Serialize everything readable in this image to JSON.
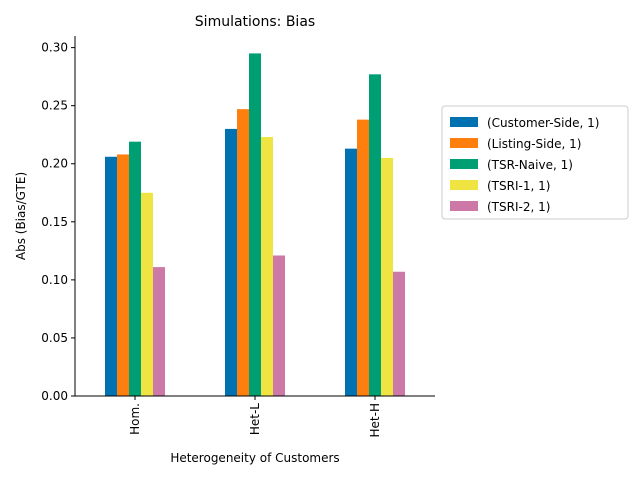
{
  "chart_data": {
    "type": "bar",
    "title": "Simulations: Bias",
    "xlabel": "Heterogeneity of Customers",
    "ylabel": "Abs (Bias/GTE)",
    "categories": [
      "Hom.",
      "Het-L",
      "Het-H"
    ],
    "ylim": [
      0,
      0.31
    ],
    "yticks": [
      0.0,
      0.05,
      0.1,
      0.15,
      0.2,
      0.25,
      0.3
    ],
    "ytick_labels": [
      "0.00",
      "0.05",
      "0.10",
      "0.15",
      "0.20",
      "0.25",
      "0.30"
    ],
    "grid": false,
    "legend_position": "right",
    "series": [
      {
        "name": "(Customer-Side, 1)",
        "color": "#0072b2",
        "values": [
          0.206,
          0.23,
          0.213
        ]
      },
      {
        "name": "(Listing-Side, 1)",
        "color": "#ff7f0e",
        "values": [
          0.208,
          0.247,
          0.238
        ]
      },
      {
        "name": "(TSR-Naive, 1)",
        "color": "#009e73",
        "values": [
          0.219,
          0.295,
          0.277
        ]
      },
      {
        "name": "(TSRI-1, 1)",
        "color": "#f0e442",
        "values": [
          0.175,
          0.223,
          0.205
        ]
      },
      {
        "name": "(TSRI-2, 1)",
        "color": "#cc79a7",
        "values": [
          0.111,
          0.121,
          0.107
        ]
      }
    ]
  }
}
